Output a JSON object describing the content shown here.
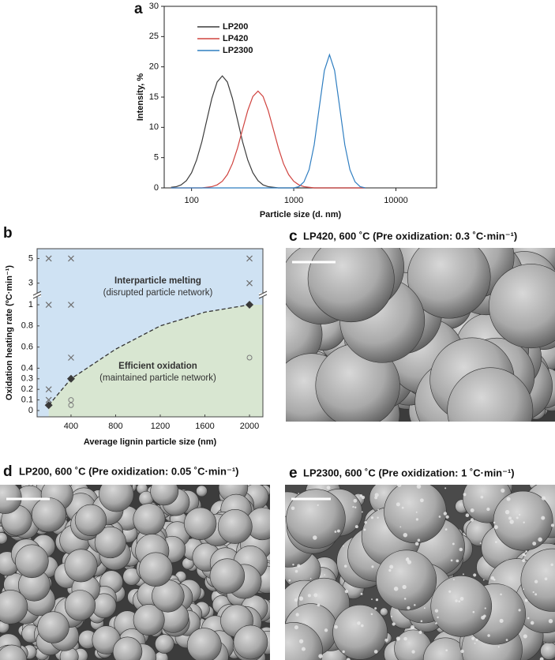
{
  "chart_data": [
    {
      "type": "line",
      "panel": "a",
      "xlabel": "Particle size (d. nm)",
      "ylabel": "Intensity, %",
      "xscale": "log",
      "xlim": [
        54,
        25000
      ],
      "xticks": [
        100,
        1000,
        10000
      ],
      "ylim": [
        0,
        30
      ],
      "yticks": [
        0,
        5,
        10,
        15,
        20,
        25,
        30
      ],
      "legend": "upper left",
      "x": [
        63,
        71,
        79,
        89,
        100,
        112,
        126,
        141,
        158,
        178,
        200,
        224,
        251,
        282,
        316,
        355,
        398,
        447,
        501,
        562,
        631,
        708,
        794,
        891,
        1000,
        1122,
        1259,
        1413,
        1585,
        1778,
        1995,
        2239,
        2512,
        2818,
        3162,
        3548,
        3981,
        4467,
        5012
      ],
      "series": [
        {
          "name": "LP200",
          "color": "#3b3b3b",
          "values": [
            0.1,
            0.2,
            0.5,
            1.2,
            2.5,
            4.6,
            7.6,
            11.2,
            14.8,
            17.5,
            18.5,
            17.5,
            14.8,
            11.2,
            7.6,
            4.6,
            2.5,
            1.2,
            0.5,
            0.2,
            0.1,
            0,
            0,
            0,
            0,
            0,
            0,
            0,
            0,
            0,
            0,
            0,
            0,
            0,
            0,
            0,
            0,
            0,
            0
          ]
        },
        {
          "name": "LP420",
          "color": "#d0433f",
          "values": [
            0,
            0,
            0,
            0,
            0,
            0,
            0,
            0.1,
            0.2,
            0.5,
            1.1,
            2.2,
            4.0,
            6.6,
            9.7,
            12.8,
            15.1,
            16,
            15.1,
            12.8,
            9.7,
            6.6,
            4.0,
            2.2,
            1.1,
            0.5,
            0.2,
            0.1,
            0,
            0,
            0,
            0,
            0,
            0,
            0,
            0,
            0,
            0,
            0
          ]
        },
        {
          "name": "LP2300",
          "color": "#2f7ec1",
          "values": [
            0,
            0,
            0,
            0,
            0,
            0,
            0,
            0,
            0,
            0,
            0,
            0,
            0,
            0,
            0,
            0,
            0,
            0,
            0,
            0,
            0,
            0,
            0,
            0,
            0,
            0.2,
            1.0,
            3.0,
            7.1,
            13.3,
            19.4,
            22,
            19.4,
            13.3,
            7.1,
            3.0,
            1.0,
            0.2,
            0
          ]
        }
      ]
    },
    {
      "type": "scatter",
      "panel": "b",
      "xlabel": "Average lignin particle size (nm)",
      "ylabel": "Oxidation heating rate (ºC·min⁻¹)",
      "xlim": [
        96,
        2120
      ],
      "xticks": [
        400,
        800,
        1200,
        1600,
        2000
      ],
      "y_segments": [
        {
          "ylim": [
            -0.06,
            1.06
          ],
          "yticks": [
            0,
            0.1,
            0.2,
            0.3,
            0.4,
            0.6,
            0.8,
            1
          ]
        },
        {
          "ylim": [
            2.4,
            5.8
          ],
          "yticks": [
            3,
            5
          ]
        }
      ],
      "above_color": "#cfe2f3",
      "below_color": "#d8e6d1",
      "annotations": [
        "Interparticle melting",
        "(disrupted particle network)",
        "Efficient oxidation",
        "(maintained particle network)"
      ],
      "series": [
        {
          "marker": "x",
          "color": "#6f6f6f",
          "x": [
            200,
            400,
            2000,
            200,
            400,
            2000,
            400,
            200,
            200
          ],
          "values": [
            5,
            5,
            5,
            1,
            1,
            3,
            0.5,
            0.2,
            0.1
          ]
        },
        {
          "marker": "o",
          "color": "#7a7a7a",
          "x": [
            400,
            400,
            2000
          ],
          "values": [
            0.1,
            0.05,
            0.5
          ]
        },
        {
          "marker": "diamond",
          "color": "#3a3a3a",
          "x": [
            200,
            400,
            2000
          ],
          "values": [
            0.05,
            0.3,
            1
          ]
        },
        {
          "marker": "dashed-line",
          "color": "#333333",
          "x": [
            200,
            400,
            800,
            1200,
            1600,
            2000
          ],
          "values": [
            0.05,
            0.3,
            0.58,
            0.8,
            0.93,
            1
          ]
        }
      ]
    }
  ],
  "images": [
    {
      "panel": "c",
      "caption": "LP420, 600 ˚C (Pre oxidization: 0.3 ˚C·min⁻¹)"
    },
    {
      "panel": "d",
      "caption": "LP200, 600 ˚C (Pre oxidization: 0.05 ˚C·min⁻¹)"
    },
    {
      "panel": "e",
      "caption": "LP2300, 600 ˚C (Pre oxidization: 1 ˚C·min⁻¹)"
    }
  ]
}
